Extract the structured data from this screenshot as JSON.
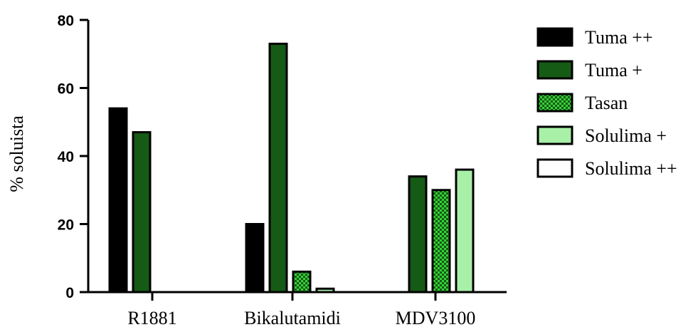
{
  "chart_data": {
    "type": "bar",
    "categories": [
      "R1881",
      "Bikalutamidi",
      "MDV3100"
    ],
    "ylabel": "% soluista",
    "ylim": [
      0,
      80
    ],
    "yticks": [
      "0",
      "20",
      "40",
      "60",
      "80"
    ],
    "legend_position": "right",
    "grid": false,
    "series": [
      {
        "name": "Tuma ++",
        "values": [
          54,
          20,
          0
        ],
        "color": "#000000",
        "pattern": "solid"
      },
      {
        "name": "Tuma +",
        "values": [
          47,
          73,
          34
        ],
        "color": "#155a15",
        "pattern": "solid"
      },
      {
        "name": "Tasan",
        "values": [
          0,
          6,
          30
        ],
        "color": "#2fc12f",
        "pattern": "checker"
      },
      {
        "name": "Solulima +",
        "values": [
          0,
          1,
          36
        ],
        "color": "#a8f0a8",
        "pattern": "solid"
      },
      {
        "name": "Solulima ++",
        "values": [
          0,
          0,
          0
        ],
        "color": "#ffffff",
        "pattern": "solid"
      }
    ]
  }
}
